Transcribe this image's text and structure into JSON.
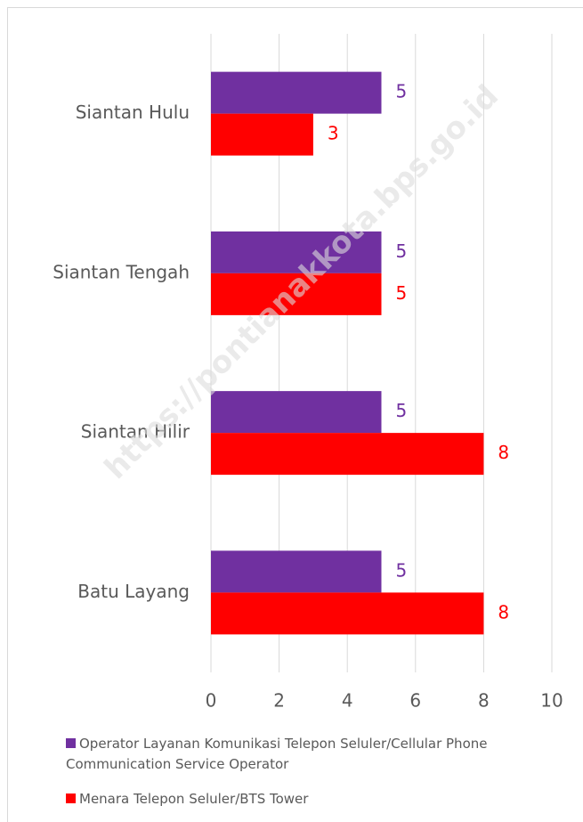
{
  "chart_data": {
    "type": "barh",
    "watermark": "https://pontianakkota.bps.go.id",
    "categories": [
      "Siantan Hulu",
      "Siantan Tengah",
      "Siantan Hilir",
      "Batu Layang"
    ],
    "series": [
      {
        "name": "Operator Layanan Komunikasi Telepon Seluler/Cellular Phone Communication Service Operator",
        "color": "#7030a0",
        "values": [
          5,
          5,
          5,
          5
        ]
      },
      {
        "name": "Menara Telepon Seluler/BTS Tower",
        "color": "#ff0000",
        "values": [
          3,
          5,
          8,
          8
        ]
      }
    ],
    "xlim": [
      0,
      10
    ],
    "xticks": [
      0,
      2,
      4,
      6,
      8,
      10
    ],
    "grid": true,
    "legend": "bottom"
  }
}
